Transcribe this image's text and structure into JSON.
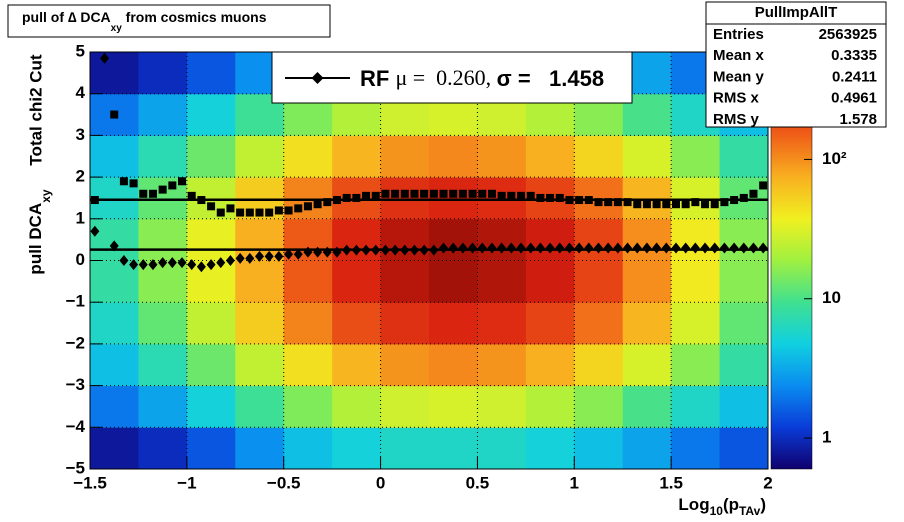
{
  "chart_data": {
    "type": "heatmap-profile",
    "title": {
      "main": "pull of ∆ DCA",
      "sub": "xy",
      "rest": " from cosmics muons"
    },
    "ylabel": {
      "top": "Total chi2 Cut",
      "main": "pull DCA",
      "sub": "xy"
    },
    "xlabel": {
      "a": "Log",
      "b": "10",
      "c": "(p",
      "d": "TAv",
      "e": ")"
    },
    "xlim": [
      -1.5,
      2
    ],
    "ylim": [
      -5,
      5
    ],
    "zlim": [
      0.6,
      590
    ],
    "zlog": true,
    "grid": true,
    "xticks": [
      {
        "value": -1.5,
        "label": "−1.5"
      },
      {
        "value": -1,
        "label": "−1"
      },
      {
        "value": -0.5,
        "label": "−0.5"
      },
      0,
      0.5,
      1,
      1.5,
      2
    ],
    "yticks": [
      {
        "value": -5,
        "label": "−5"
      },
      {
        "value": -4,
        "label": "−4"
      },
      {
        "value": -3,
        "label": "−3"
      },
      {
        "value": -2,
        "label": "−2"
      },
      {
        "value": -1,
        "label": "−1"
      },
      0,
      1,
      2,
      3,
      4,
      5
    ],
    "zticks": [
      1,
      10,
      {
        "value": 100,
        "label": "10²"
      }
    ],
    "palette": [
      "#10006e",
      "#0a3cd8",
      "#0a8cf0",
      "#10d0e0",
      "#40e090",
      "#a0f040",
      "#f0f020",
      "#f8b020",
      "#f06018",
      "#d82010",
      "#8c0c04"
    ],
    "xbins": [
      -1.5,
      -1.25,
      -1,
      -0.75,
      -0.5,
      -0.25,
      0,
      0.25,
      0.5,
      0.75,
      1,
      1.25,
      1.5,
      1.75,
      2
    ],
    "ybins": [
      -5,
      -4,
      -3,
      -2,
      -1,
      0,
      1,
      2,
      3,
      4,
      5
    ],
    "z": [
      [
        0.8,
        1,
        1.5,
        2.5,
        4,
        5,
        6,
        6,
        6,
        5,
        4,
        3,
        2,
        1.5
      ],
      [
        2,
        3,
        5,
        9,
        15,
        22,
        28,
        30,
        28,
        22,
        16,
        10,
        6,
        4
      ],
      [
        4,
        7,
        13,
        25,
        45,
        70,
        95,
        105,
        95,
        75,
        50,
        30,
        16,
        8
      ],
      [
        6,
        12,
        25,
        55,
        110,
        180,
        250,
        280,
        260,
        200,
        130,
        70,
        30,
        12
      ],
      [
        8,
        16,
        35,
        75,
        160,
        280,
        400,
        480,
        420,
        320,
        200,
        100,
        40,
        16
      ],
      [
        8,
        16,
        35,
        75,
        160,
        280,
        400,
        480,
        420,
        320,
        200,
        100,
        40,
        16
      ],
      [
        6,
        12,
        25,
        55,
        110,
        180,
        250,
        280,
        260,
        200,
        130,
        70,
        30,
        12
      ],
      [
        4,
        7,
        13,
        25,
        45,
        70,
        95,
        105,
        95,
        75,
        50,
        30,
        16,
        8
      ],
      [
        2,
        3,
        5,
        9,
        15,
        22,
        28,
        30,
        28,
        22,
        16,
        10,
        6,
        4
      ],
      [
        0.8,
        1,
        1.5,
        2.5,
        4,
        5,
        6,
        6,
        6,
        5,
        4,
        3,
        2,
        1.5
      ]
    ],
    "x": [
      -1.475,
      -1.425,
      -1.375,
      -1.325,
      -1.275,
      -1.225,
      -1.175,
      -1.125,
      -1.075,
      -1.025,
      -0.975,
      -0.925,
      -0.875,
      -0.825,
      -0.775,
      -0.725,
      -0.675,
      -0.625,
      -0.575,
      -0.525,
      -0.475,
      -0.425,
      -0.375,
      -0.325,
      -0.275,
      -0.225,
      -0.175,
      -0.125,
      -0.075,
      -0.025,
      0.025,
      0.075,
      0.125,
      0.175,
      0.225,
      0.275,
      0.325,
      0.375,
      0.425,
      0.475,
      0.525,
      0.575,
      0.625,
      0.675,
      0.725,
      0.775,
      0.825,
      0.875,
      0.925,
      0.975,
      1.025,
      1.075,
      1.125,
      1.175,
      1.225,
      1.275,
      1.325,
      1.375,
      1.425,
      1.475,
      1.525,
      1.575,
      1.625,
      1.675,
      1.725,
      1.775,
      1.825,
      1.875,
      1.925,
      1.975
    ],
    "series": [
      {
        "marker": "diamond",
        "color": "#000000",
        "values": [
          0.7,
          4.85,
          0.35,
          0,
          -0.1,
          -0.1,
          -0.1,
          -0.05,
          -0.05,
          -0.05,
          -0.1,
          -0.15,
          -0.1,
          -0.05,
          0,
          0.05,
          0.05,
          0.1,
          0.1,
          0.1,
          0.15,
          0.15,
          0.2,
          0.2,
          0.2,
          0.2,
          0.25,
          0.25,
          0.25,
          0.25,
          0.25,
          0.25,
          0.25,
          0.25,
          0.25,
          0.25,
          0.3,
          0.3,
          0.3,
          0.3,
          0.3,
          0.3,
          0.3,
          0.3,
          0.3,
          0.3,
          0.3,
          0.3,
          0.3,
          0.3,
          0.3,
          0.3,
          0.3,
          0.3,
          0.3,
          0.3,
          0.3,
          0.3,
          0.3,
          0.3,
          0.3,
          0.3,
          0.3,
          0.3,
          0.3,
          0.3,
          0.3,
          0.3,
          0.3,
          0.3
        ]
      },
      {
        "marker": "square",
        "color": "#000000",
        "values": [
          1.45,
          null,
          3.5,
          1.9,
          1.85,
          1.6,
          1.6,
          1.7,
          1.8,
          1.9,
          1.55,
          1.45,
          1.3,
          1.15,
          1.25,
          1.15,
          1.15,
          1.15,
          1.15,
          1.2,
          1.2,
          1.25,
          1.3,
          1.35,
          1.4,
          1.45,
          1.5,
          1.5,
          1.55,
          1.55,
          1.6,
          1.6,
          1.6,
          1.6,
          1.6,
          1.6,
          1.6,
          1.6,
          1.6,
          1.6,
          1.6,
          1.6,
          1.55,
          1.55,
          1.55,
          1.55,
          1.5,
          1.5,
          1.5,
          1.45,
          1.45,
          1.45,
          1.4,
          1.4,
          1.4,
          1.4,
          1.35,
          1.35,
          1.35,
          1.35,
          1.35,
          1.35,
          1.4,
          1.35,
          1.35,
          1.4,
          1.45,
          1.5,
          1.6,
          1.8
        ]
      }
    ],
    "mean_fit": 0.26,
    "sigma_fit": 1.458,
    "legend": {
      "a": "RF ",
      "b": "μ =  0.260, ",
      "c": "σ =   1.458"
    },
    "stats": {
      "title": "PullImpAllT",
      "rows": [
        [
          "Entries",
          2563925
        ],
        [
          "Mean x",
          0.3335
        ],
        [
          "Mean y",
          0.2411
        ],
        [
          "RMS x",
          0.4961
        ],
        [
          "RMS y",
          1.578
        ]
      ]
    }
  }
}
